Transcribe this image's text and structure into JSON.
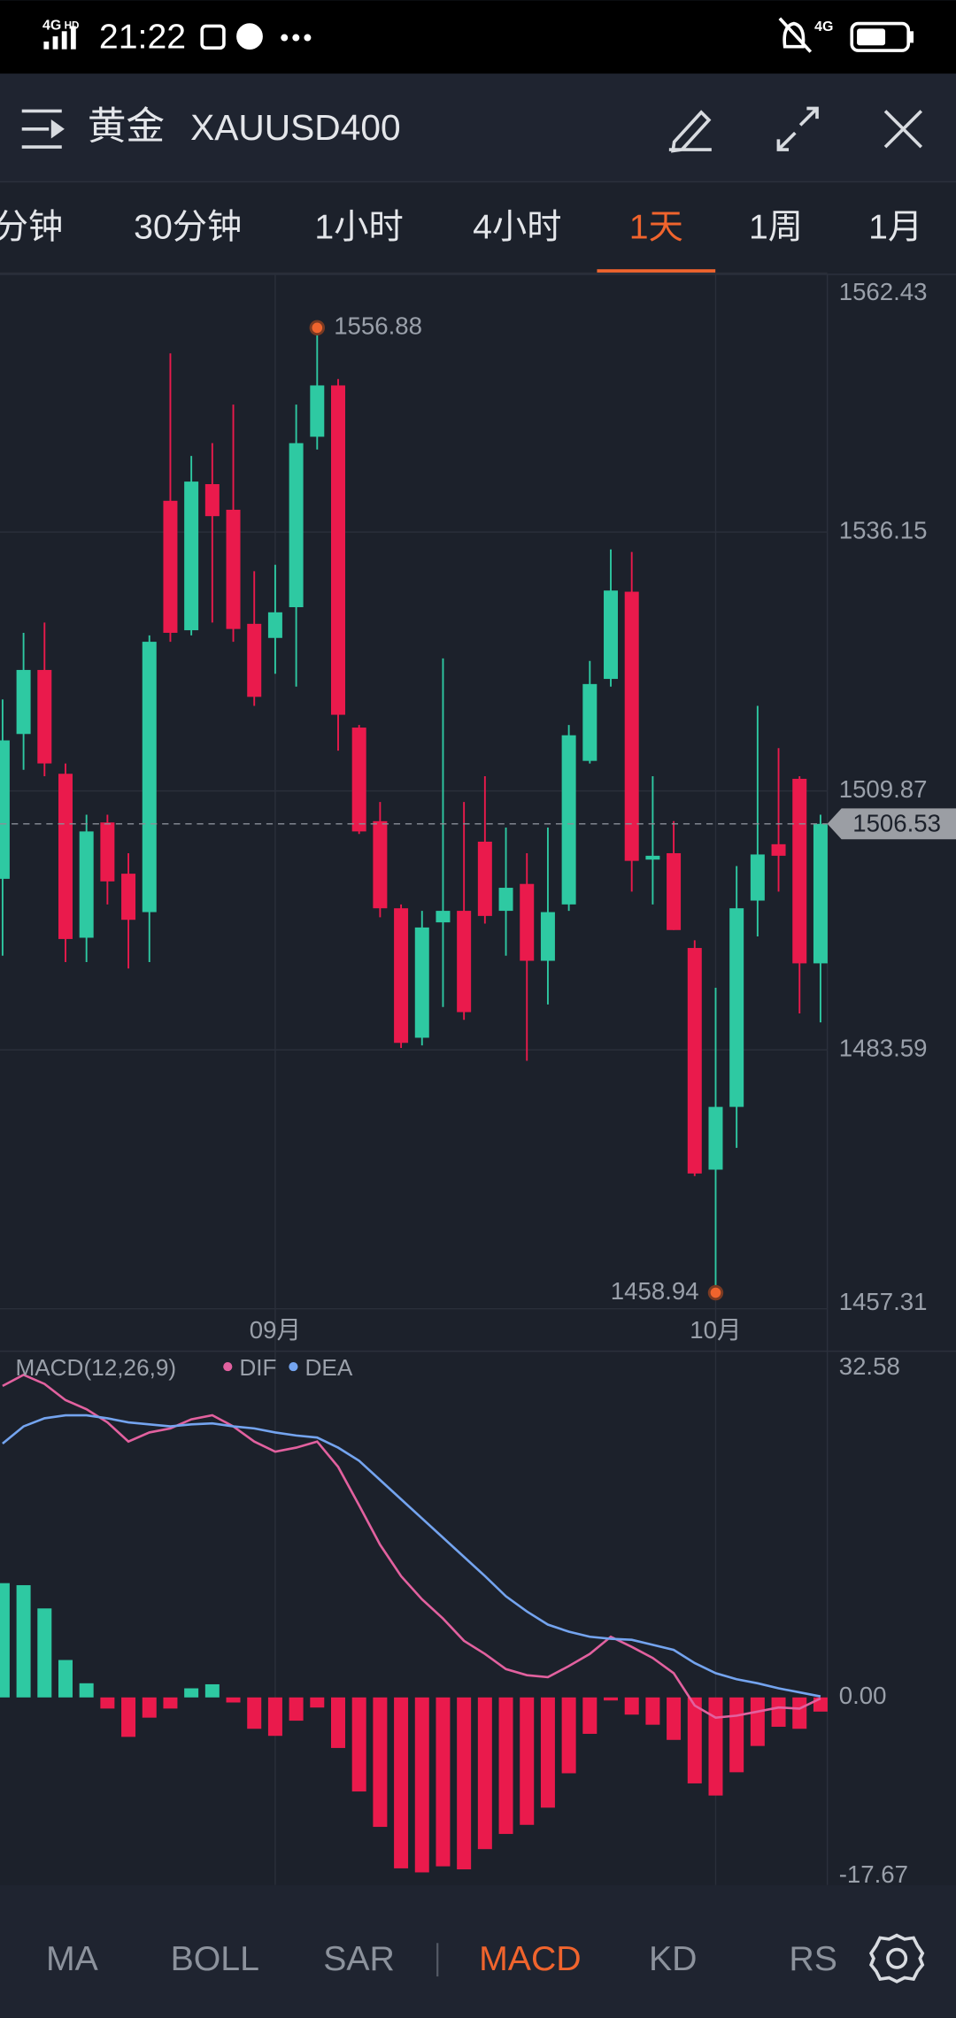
{
  "status_bar": {
    "signal": "4G",
    "signal_badge": "HD",
    "time": "21:22",
    "network": "4G"
  },
  "header": {
    "title": "黄金",
    "symbol": "XAUUSD400"
  },
  "timeframe_tabs": {
    "items": [
      "分钟",
      "30分钟",
      "1小时",
      "4小时",
      "1天",
      "1周",
      "1月"
    ],
    "active": 4
  },
  "chart_data": [
    {
      "type": "candlestick",
      "categories": [
        null,
        null,
        null,
        null,
        null,
        null,
        null,
        null,
        null,
        null,
        null,
        null,
        null,
        "09月",
        null,
        null,
        null,
        null,
        null,
        null,
        null,
        null,
        null,
        null,
        null,
        null,
        null,
        null,
        null,
        null,
        null,
        null,
        null,
        null,
        "10月",
        null,
        null,
        null,
        null,
        null
      ],
      "open": [
        1500.95,
        1515.65,
        1522.15,
        1511.61,
        1494.97,
        1506.67,
        1501.47,
        1497.57,
        1539.32,
        1526.18,
        1541.01,
        1538.41,
        1526.83,
        1525.4,
        1528.52,
        1545.82,
        1551.03,
        1516.3,
        1506.8,
        1497.96,
        1484.82,
        1496.53,
        1497.7,
        1504.72,
        1497.7,
        1500.43,
        1492.63,
        1498.35,
        1512.92,
        1521.24,
        1530.09,
        1502.9,
        1503.55,
        1493.93,
        1471.43,
        1477.8,
        1498.74,
        1504.46,
        1511.1,
        1492.37
      ],
      "high": [
        1519.16,
        1525.92,
        1526.96,
        1512.66,
        1507.45,
        1507.45,
        1503.55,
        1525.66,
        1554.28,
        1543.87,
        1545.17,
        1549.08,
        1532.17,
        1532.82,
        1549.08,
        1556.88,
        1551.68,
        1516.56,
        1508.75,
        1498.35,
        1497.7,
        1523.32,
        1508.75,
        1511.36,
        1506.15,
        1503.55,
        1506.15,
        1516.56,
        1523.06,
        1534.38,
        1534.12,
        1511.36,
        1506.8,
        1494.71,
        1489.89,
        1502.25,
        1518.51,
        1514.22,
        1511.36,
        1507.45
      ],
      "low": [
        1493.15,
        1512.01,
        1511.36,
        1492.5,
        1492.5,
        1498.35,
        1491.85,
        1492.5,
        1525.01,
        1525.66,
        1526.96,
        1525.01,
        1518.51,
        1521.76,
        1520.46,
        1544.52,
        1513.96,
        1505.5,
        1497.05,
        1483.78,
        1484.04,
        1487.94,
        1486.64,
        1496.4,
        1493.15,
        1482.48,
        1488.2,
        1497.7,
        1512.66,
        1520.46,
        1499.65,
        1498.35,
        1495.75,
        1470.78,
        1458.94,
        1473.64,
        1495.1,
        1499.65,
        1487.29,
        1486.38
      ],
      "close": [
        1515.0,
        1522.15,
        1512.66,
        1494.84,
        1505.76,
        1500.69,
        1496.79,
        1525.01,
        1525.92,
        1541.27,
        1537.76,
        1526.31,
        1519.42,
        1528.0,
        1545.17,
        1551.03,
        1517.6,
        1505.76,
        1497.96,
        1484.3,
        1496.01,
        1497.7,
        1487.42,
        1497.18,
        1500.04,
        1492.63,
        1497.57,
        1515.52,
        1520.72,
        1530.21,
        1502.77,
        1503.29,
        1495.75,
        1471.04,
        1477.8,
        1497.96,
        1503.42,
        1503.29,
        1492.37,
        1506.53
      ],
      "up_color": "#2ec9a2",
      "down_color": "#ea1a4c",
      "ylim": [
        1457.31,
        1562.43
      ],
      "yticks": [
        1457.31,
        1483.59,
        1509.87,
        1536.15,
        1562.43
      ],
      "grid": true,
      "high_label": 1556.88,
      "low_label": 1458.94,
      "last_price": 1506.53
    },
    {
      "type": "macd",
      "title": "MACD(12,26,9)",
      "histogram": [
        11.3,
        11.1,
        8.8,
        3.7,
        1.4,
        -1.1,
        -3.9,
        -2.0,
        -1.1,
        0.9,
        1.3,
        -0.5,
        -3.1,
        -3.8,
        -2.3,
        -1.0,
        -5.0,
        -9.3,
        -12.8,
        -16.9,
        -17.3,
        -16.7,
        -17.0,
        -15.0,
        -13.5,
        -12.6,
        -10.9,
        -7.5,
        -3.6,
        -0.3,
        -1.7,
        -2.7,
        -4.2,
        -8.5,
        -9.7,
        -7.4,
        -4.8,
        -2.9,
        -3.1,
        -1.4
      ],
      "series": [
        {
          "name": "DIF",
          "color": "#e2619f",
          "values": [
            30.8,
            31.9,
            31.0,
            29.4,
            28.5,
            27.2,
            25.3,
            26.2,
            26.6,
            27.5,
            27.9,
            26.8,
            25.3,
            24.3,
            24.7,
            25.3,
            22.8,
            19.0,
            15.1,
            12.0,
            9.7,
            7.8,
            5.6,
            4.3,
            2.8,
            2.2,
            2.0,
            3.1,
            4.3,
            6.0,
            5.0,
            3.9,
            2.4,
            -0.8,
            -2.0,
            -1.8,
            -1.4,
            -1.0,
            -1.1,
            -0.1
          ]
        },
        {
          "name": "DEA",
          "color": "#74a4ef",
          "values": [
            25.1,
            26.8,
            27.6,
            27.9,
            27.9,
            27.6,
            27.2,
            27.0,
            26.8,
            27.0,
            27.1,
            26.8,
            26.6,
            26.2,
            25.9,
            25.7,
            24.7,
            23.4,
            21.5,
            19.6,
            17.7,
            15.8,
            13.9,
            12.0,
            10.0,
            8.5,
            7.2,
            6.5,
            6.0,
            5.8,
            5.7,
            5.2,
            4.7,
            3.4,
            2.4,
            1.8,
            1.4,
            0.9,
            0.5,
            0.1
          ]
        }
      ],
      "up_color": "#2ec9a2",
      "down_color": "#ea1a4c",
      "ylim": [
        -17.67,
        32.58
      ],
      "yticks": [
        -17.67,
        {
          "value": 0,
          "label": "0.00"
        },
        32.58
      ]
    }
  ],
  "indicator_tabs": {
    "items": [
      "MA",
      "BOLL",
      "SAR",
      "MACD",
      "KD",
      "RS"
    ],
    "active": 3
  }
}
